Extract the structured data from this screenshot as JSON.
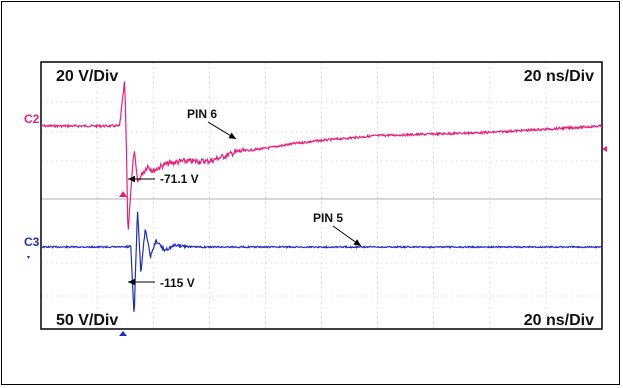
{
  "chart_data": [
    {
      "type": "line",
      "panel": "top",
      "channel_label": "C2",
      "vertical_scale": "20 V/Div",
      "horizontal_scale": "20 ns/Div",
      "series": [
        {
          "name": "PIN 6",
          "color": "#e8207a",
          "x_div": [
            0,
            1,
            1.4,
            1.49,
            1.52,
            1.55,
            1.6,
            1.66,
            1.72,
            1.8,
            1.9,
            2.0,
            2.2,
            2.5,
            3.0,
            3.5,
            4.0,
            4.5,
            5.0,
            6.0,
            7.0,
            8.0,
            9.0,
            10.0
          ],
          "y_volts": [
            0,
            0,
            0,
            28,
            -10,
            -68,
            -40,
            -15,
            -35,
            -30,
            -25,
            -28,
            -24,
            -22,
            -22,
            -16,
            -14,
            -11,
            -9,
            -6,
            -5,
            -4,
            -2,
            0
          ]
        }
      ],
      "annotations": [
        {
          "text": "PIN 6"
        },
        {
          "text": "-71.1 V"
        }
      ]
    },
    {
      "type": "line",
      "panel": "bottom",
      "channel_label": "C3",
      "vertical_scale": "50 V/Div",
      "horizontal_scale": "20 ns/Div",
      "series": [
        {
          "name": "PIN 5",
          "color": "#1f2fbf",
          "x_div": [
            0,
            1.5,
            1.6,
            1.66,
            1.72,
            1.78,
            1.86,
            1.95,
            2.05,
            2.2,
            2.4,
            2.7,
            3.0,
            10.0
          ],
          "y_volts": [
            0,
            0,
            0,
            -110,
            60,
            -40,
            30,
            -15,
            10,
            -5,
            3,
            0,
            0,
            0
          ]
        }
      ],
      "annotations": [
        {
          "text": "PIN 5"
        },
        {
          "text": "-115 V"
        }
      ]
    }
  ],
  "colors": {
    "c2": "#e8207a",
    "c3": "#1f2fbf",
    "grid": "#b8b8b8",
    "frame": "#000000"
  }
}
